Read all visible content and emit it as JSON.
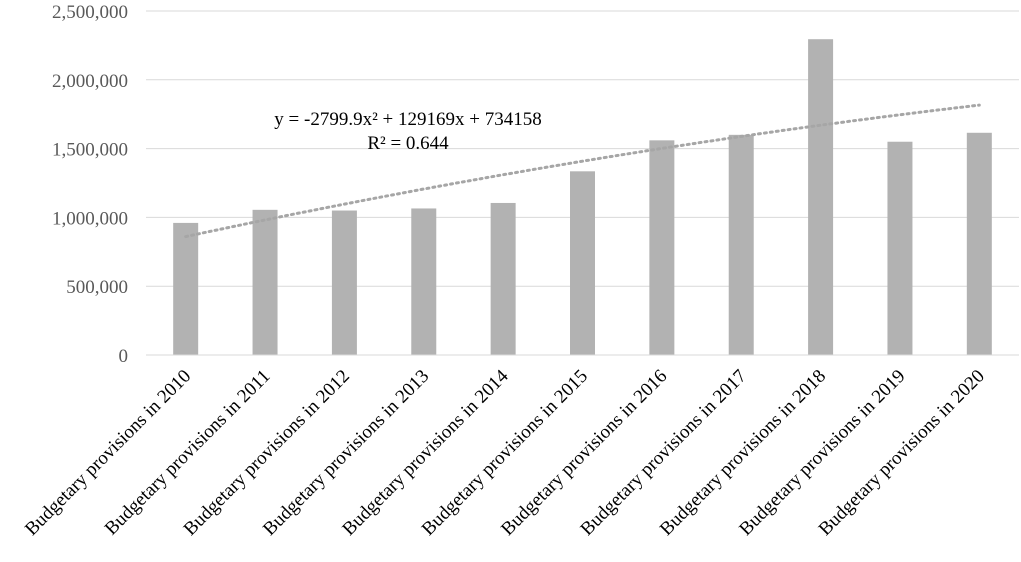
{
  "chart_data": {
    "type": "bar",
    "categories": [
      "Budgetary provisions in 2010",
      "Budgetary provisions in 2011",
      "Budgetary provisions in 2012",
      "Budgetary provisions in 2013",
      "Budgetary provisions in 2014",
      "Budgetary provisions in 2015",
      "Budgetary provisions in 2016",
      "Budgetary provisions in 2017",
      "Budgetary provisions in 2018",
      "Budgetary provisions in 2019",
      "Budgetary provisions in 2020"
    ],
    "series": [
      {
        "values": [
          960000,
          1055000,
          1050000,
          1065000,
          1105000,
          1335000,
          1560000,
          1600000,
          2295000,
          1550000,
          1615000
        ]
      }
    ],
    "y_ticks": [
      "0",
      "500,000",
      "1,000,000",
      "1,500,000",
      "2,000,000",
      "2,500,000"
    ],
    "ylim": [
      0,
      2500000
    ],
    "grid": true,
    "trendline": {
      "type": "polynomial",
      "equation": "y = -2799.9x² + 129169x + 734158",
      "r_squared": "R² = 0.644",
      "coefficients": {
        "a": -2799.9,
        "b": 129169,
        "c": 734158
      },
      "style": "dotted"
    },
    "colors": {
      "bar": "#b2b2b2",
      "grid": "#d9d9d9",
      "trend": "#a6a6a6"
    }
  }
}
